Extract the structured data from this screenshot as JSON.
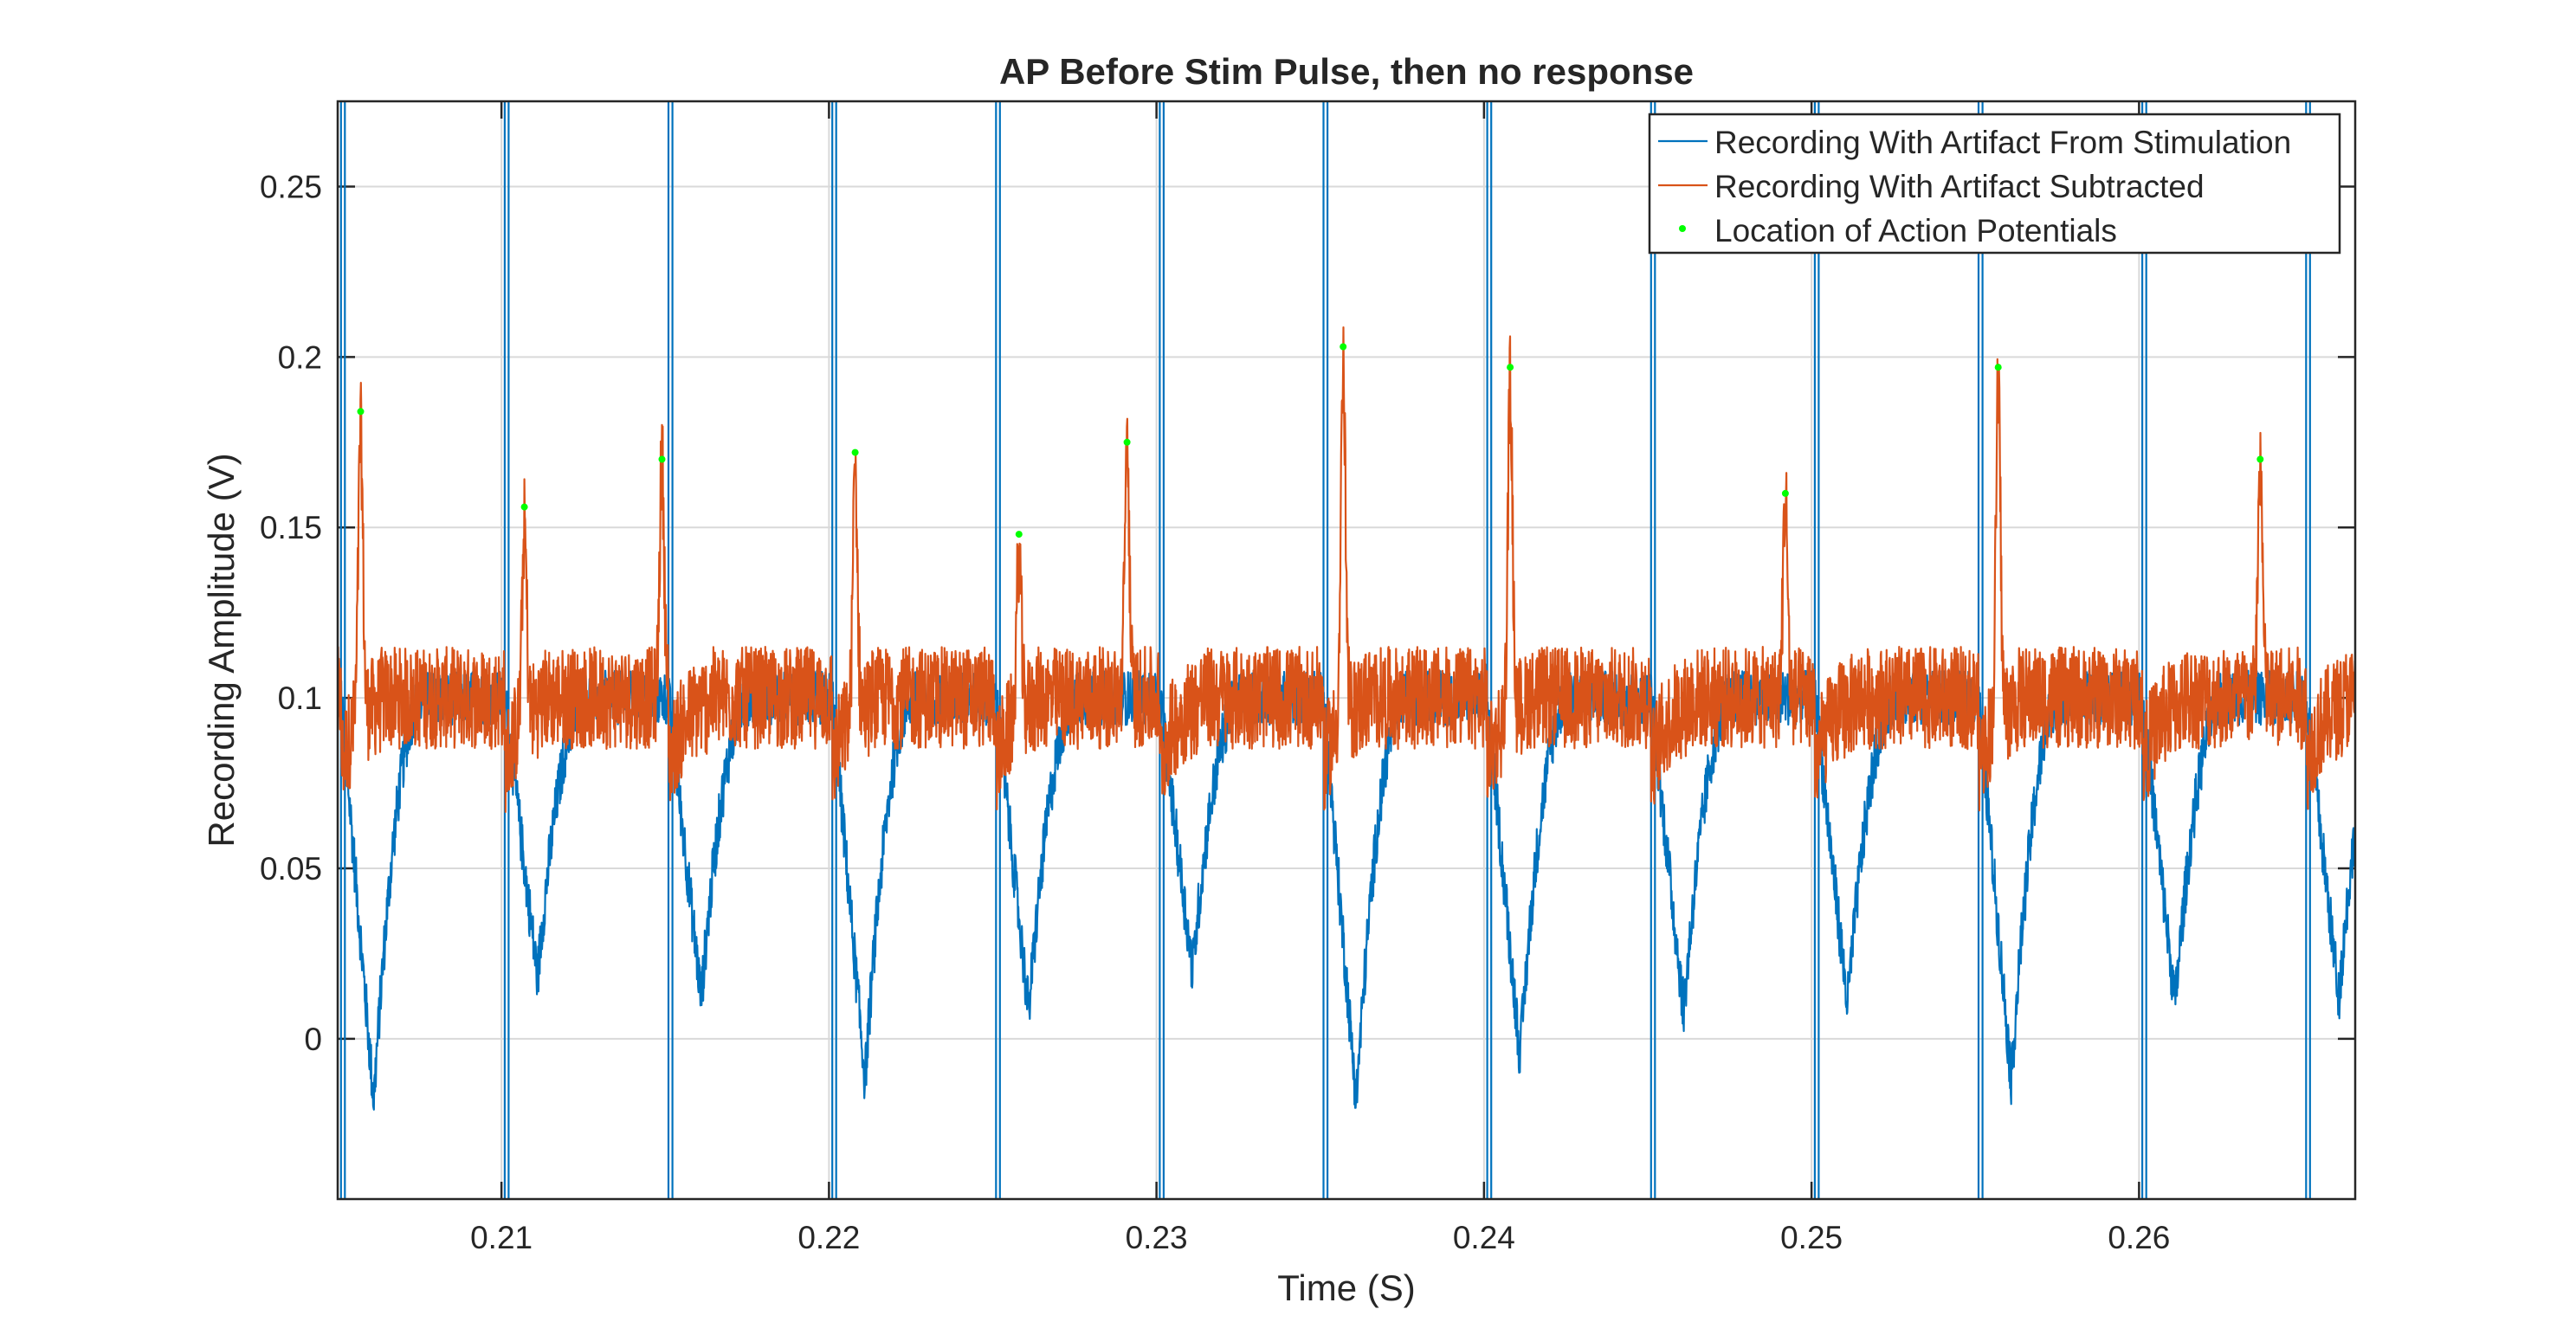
{
  "chart_data": {
    "type": "line",
    "title": "AP Before Stim Pulse, then no response",
    "xlabel": "Time (S)",
    "ylabel": "Recording Amplitude (V)",
    "xlim": [
      0.205,
      0.2666
    ],
    "ylim": [
      -0.047,
      0.275
    ],
    "x_ticks": [
      0.21,
      0.22,
      0.23,
      0.24,
      0.25,
      0.26
    ],
    "x_tick_labels": [
      "0.21",
      "0.22",
      "0.23",
      "0.24",
      "0.25",
      "0.26"
    ],
    "y_ticks": [
      0,
      0.05,
      0.1,
      0.15,
      0.2,
      0.25
    ],
    "y_tick_labels": [
      "0",
      "0.05",
      "0.1",
      "0.15",
      "0.2",
      "0.25"
    ],
    "grid": true,
    "legend_position": "top-right",
    "stim_artifact_times": [
      0.2051,
      0.2101,
      0.2151,
      0.2201,
      0.2251,
      0.2301,
      0.2351,
      0.2401,
      0.2451,
      0.2501,
      0.2551,
      0.2601,
      0.2651
    ],
    "series": [
      {
        "name": "Recording With Artifact From Stimulation",
        "color": "#0072BD",
        "baseline": 0.1,
        "trough_times": [
          0.2061,
          0.2111,
          0.2161,
          0.2211,
          0.2261,
          0.2311,
          0.2361,
          0.2411,
          0.2461,
          0.2511,
          0.2561,
          0.2611,
          0.2661
        ],
        "trough_values": [
          -0.018,
          0.018,
          0.012,
          -0.012,
          0.008,
          0.02,
          -0.018,
          -0.005,
          0.008,
          0.01,
          -0.012,
          0.01,
          0.012
        ]
      },
      {
        "name": "Recording With Artifact Subtracted",
        "color": "#D95319",
        "baseline": 0.1
      },
      {
        "name": "Location of Action Potentials",
        "color": "#00FF00",
        "type": "scatter",
        "x": [
          0.2057,
          0.2107,
          0.2149,
          0.2208,
          0.2258,
          0.2291,
          0.2357,
          0.2408,
          0.2492,
          0.2557,
          0.2637
        ],
        "y": [
          0.184,
          0.156,
          0.17,
          0.172,
          0.148,
          0.175,
          0.203,
          0.197,
          0.16,
          0.197,
          0.17
        ]
      }
    ]
  }
}
